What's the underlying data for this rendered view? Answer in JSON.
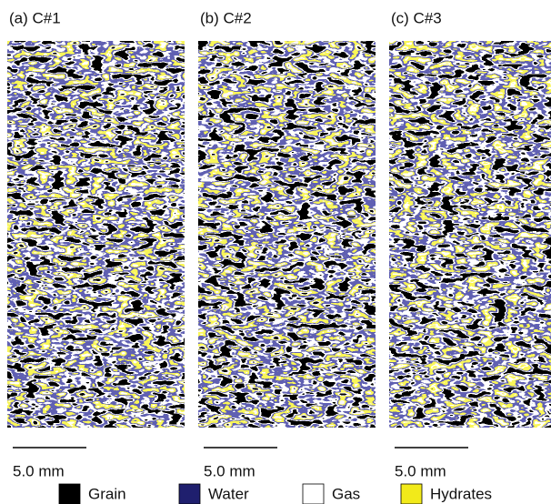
{
  "panels": [
    {
      "label": "(a) C#1",
      "scale": "5.0 mm"
    },
    {
      "label": "(b) C#2",
      "scale": "5.0 mm"
    },
    {
      "label": "(c) C#3",
      "scale": "5.0 mm"
    }
  ],
  "legend": [
    {
      "label": "Grain",
      "color": "#000000"
    },
    {
      "label": "Water",
      "color": "#1f1f6e"
    },
    {
      "label": "Gas",
      "color": "#ffffff"
    },
    {
      "label": "Hydrates",
      "color": "#f2ea1a"
    }
  ]
}
